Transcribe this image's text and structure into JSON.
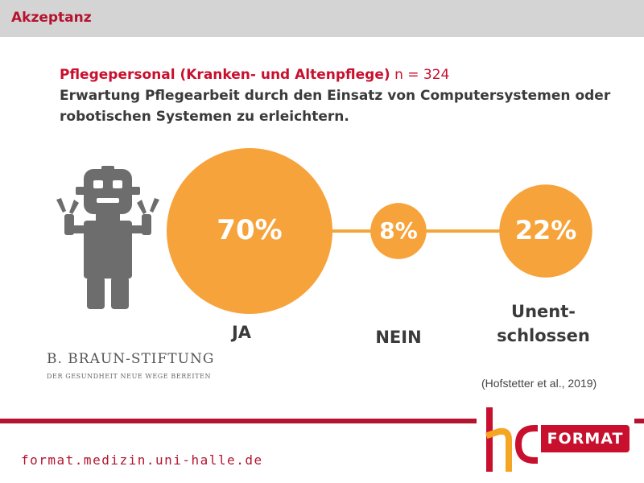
{
  "header": {
    "title": "Akzeptanz"
  },
  "heading": {
    "group": "Pflegepersonal (Kranken- und Altenpflege)",
    "n": "n = 324",
    "question_line1": "Erwartung Pflegearbeit durch den Einsatz von Computersystemen oder",
    "question_line2": "robotischen Systemen zu erleichtern."
  },
  "icons": {
    "robot": "robot-icon"
  },
  "colors": {
    "accent": "#c8102e",
    "bubble": "#f7a33b",
    "connector": "#f2a73d",
    "robot": "#6d6d6d"
  },
  "chart_data": {
    "type": "bubble",
    "categories": [
      "JA",
      "NEIN",
      "Unent- schlossen"
    ],
    "values": [
      70,
      8,
      22
    ],
    "value_labels": [
      "70%",
      "8%",
      "22%"
    ],
    "unit": "%"
  },
  "labels": {
    "ja": "JA",
    "nein": "NEIN",
    "unent_line1": "Unent-",
    "unent_line2": "schlossen"
  },
  "braun": {
    "name": "B. BRAUN-STIFTUNG",
    "tagline": "DER GESUNDHEIT NEUE WEGE BEREITEN"
  },
  "citation": "(Hofstetter et al., 2019)",
  "footer": {
    "url": "format.medizin.uni-halle.de",
    "logo_mark": "hc",
    "logo_text": "FORMAT"
  }
}
